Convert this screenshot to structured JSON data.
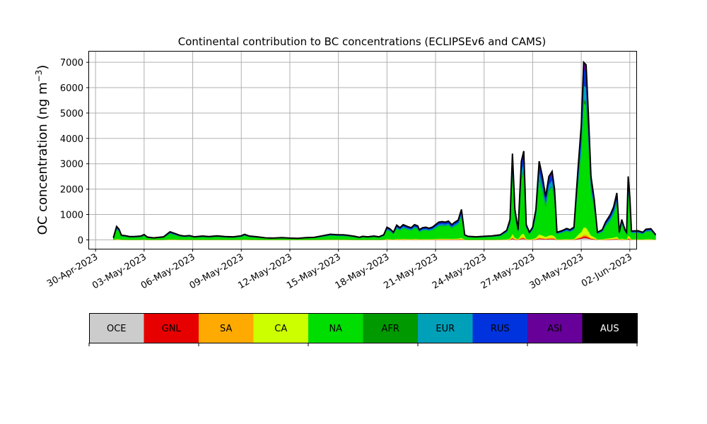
{
  "chart_data": {
    "type": "area",
    "title": "Continental contribution to BC concentrations (ECLIPSEv6 and CAMS)",
    "xlabel": "",
    "ylabel": "OC concentration (ng m",
    "ylabel_superscript": "−3",
    "ylabel_suffix": ")",
    "ylim": [
      -350,
      7450
    ],
    "yticks": [
      0,
      1000,
      2000,
      3000,
      4000,
      5000,
      6000,
      7000
    ],
    "xlim_days": [
      -0.4,
      33.4
    ],
    "xticks": [
      {
        "label": "30-Apr-2023",
        "day": 0
      },
      {
        "label": "03-May-2023",
        "day": 3
      },
      {
        "label": "06-May-2023",
        "day": 6
      },
      {
        "label": "09-May-2023",
        "day": 9
      },
      {
        "label": "12-May-2023",
        "day": 12
      },
      {
        "label": "15-May-2023",
        "day": 15
      },
      {
        "label": "18-May-2023",
        "day": 18
      },
      {
        "label": "21-May-2023",
        "day": 21
      },
      {
        "label": "24-May-2023",
        "day": 24
      },
      {
        "label": "27-May-2023",
        "day": 27
      },
      {
        "label": "30-May-2023",
        "day": 30
      },
      {
        "label": "02-Jun-2023",
        "day": 33
      }
    ],
    "grid": true,
    "legend_position": "bottom-colorbar",
    "total_color": "#000000",
    "total": [
      [
        1.1,
        80
      ],
      [
        1.3,
        530
      ],
      [
        1.45,
        420
      ],
      [
        1.6,
        180
      ],
      [
        1.8,
        170
      ],
      [
        2.1,
        130
      ],
      [
        2.4,
        130
      ],
      [
        2.8,
        150
      ],
      [
        3.0,
        210
      ],
      [
        3.2,
        110
      ],
      [
        3.6,
        80
      ],
      [
        4.2,
        120
      ],
      [
        4.6,
        320
      ],
      [
        4.9,
        250
      ],
      [
        5.2,
        180
      ],
      [
        5.5,
        150
      ],
      [
        5.8,
        170
      ],
      [
        6.1,
        120
      ],
      [
        6.6,
        150
      ],
      [
        7.0,
        130
      ],
      [
        7.5,
        160
      ],
      [
        8.0,
        130
      ],
      [
        8.5,
        120
      ],
      [
        9.0,
        160
      ],
      [
        9.2,
        220
      ],
      [
        9.5,
        150
      ],
      [
        10.0,
        120
      ],
      [
        10.5,
        80
      ],
      [
        11.0,
        70
      ],
      [
        11.5,
        90
      ],
      [
        12.0,
        70
      ],
      [
        12.5,
        60
      ],
      [
        13.0,
        90
      ],
      [
        13.5,
        100
      ],
      [
        14.0,
        160
      ],
      [
        14.5,
        220
      ],
      [
        15.0,
        200
      ],
      [
        15.3,
        200
      ],
      [
        15.6,
        180
      ],
      [
        16.0,
        140
      ],
      [
        16.3,
        100
      ],
      [
        16.5,
        140
      ],
      [
        16.8,
        120
      ],
      [
        17.2,
        150
      ],
      [
        17.5,
        120
      ],
      [
        17.8,
        200
      ],
      [
        18.0,
        500
      ],
      [
        18.2,
        430
      ],
      [
        18.4,
        300
      ],
      [
        18.6,
        580
      ],
      [
        18.8,
        480
      ],
      [
        19.0,
        600
      ],
      [
        19.3,
        520
      ],
      [
        19.5,
        480
      ],
      [
        19.7,
        600
      ],
      [
        19.9,
        550
      ],
      [
        20.0,
        400
      ],
      [
        20.2,
        480
      ],
      [
        20.4,
        500
      ],
      [
        20.6,
        460
      ],
      [
        20.8,
        500
      ],
      [
        21.0,
        600
      ],
      [
        21.2,
        700
      ],
      [
        21.4,
        720
      ],
      [
        21.6,
        700
      ],
      [
        21.8,
        740
      ],
      [
        22.0,
        600
      ],
      [
        22.2,
        700
      ],
      [
        22.4,
        780
      ],
      [
        22.6,
        1200
      ],
      [
        22.8,
        200
      ],
      [
        23.0,
        140
      ],
      [
        23.5,
        120
      ],
      [
        24.0,
        140
      ],
      [
        24.5,
        160
      ],
      [
        25.0,
        200
      ],
      [
        25.4,
        380
      ],
      [
        25.6,
        800
      ],
      [
        25.75,
        3400
      ],
      [
        25.9,
        1200
      ],
      [
        26.1,
        400
      ],
      [
        26.3,
        3100
      ],
      [
        26.45,
        3500
      ],
      [
        26.6,
        600
      ],
      [
        26.8,
        300
      ],
      [
        27.0,
        500
      ],
      [
        27.2,
        1200
      ],
      [
        27.4,
        3100
      ],
      [
        27.6,
        2500
      ],
      [
        27.8,
        1700
      ],
      [
        28.0,
        2500
      ],
      [
        28.2,
        2700
      ],
      [
        28.35,
        2000
      ],
      [
        28.5,
        300
      ],
      [
        28.8,
        360
      ],
      [
        29.1,
        450
      ],
      [
        29.3,
        400
      ],
      [
        29.55,
        500
      ],
      [
        29.8,
        2800
      ],
      [
        30.0,
        4500
      ],
      [
        30.15,
        7000
      ],
      [
        30.3,
        6900
      ],
      [
        30.45,
        4800
      ],
      [
        30.6,
        2500
      ],
      [
        30.8,
        1600
      ],
      [
        31.0,
        300
      ],
      [
        31.3,
        400
      ],
      [
        31.5,
        700
      ],
      [
        31.8,
        1000
      ],
      [
        32.0,
        1300
      ],
      [
        32.2,
        1850
      ],
      [
        32.35,
        300
      ],
      [
        32.5,
        800
      ],
      [
        32.7,
        400
      ],
      [
        32.8,
        300
      ],
      [
        32.9,
        2500
      ],
      [
        33.0,
        1700
      ],
      [
        33.1,
        350
      ],
      [
        33.5,
        360
      ],
      [
        33.8,
        300
      ],
      [
        34.0,
        420
      ],
      [
        34.3,
        440
      ],
      [
        34.6,
        200
      ]
    ],
    "series": [
      {
        "name": "OCE",
        "color": "#cccccc",
        "fraction": 0.01
      },
      {
        "name": "GNL",
        "color": "#e60000",
        "fraction": 0.01
      },
      {
        "name": "SA",
        "color": "#ffaa00",
        "fraction": 0.01
      },
      {
        "name": "CA",
        "color": "#ccff00",
        "fraction": 0.04
      },
      {
        "name": "NA",
        "color": "#00dd00",
        "fraction": 0.7
      },
      {
        "name": "AFR",
        "color": "#009900",
        "fraction": 0.02
      },
      {
        "name": "EUR",
        "color": "#00a0b8",
        "fraction": 0.08
      },
      {
        "name": "RUS",
        "color": "#0033dd",
        "fraction": 0.09
      },
      {
        "name": "ASI",
        "color": "#660099",
        "fraction": 0.04
      },
      {
        "name": "AUS",
        "color": "#000000",
        "fraction": 0.0
      }
    ]
  }
}
